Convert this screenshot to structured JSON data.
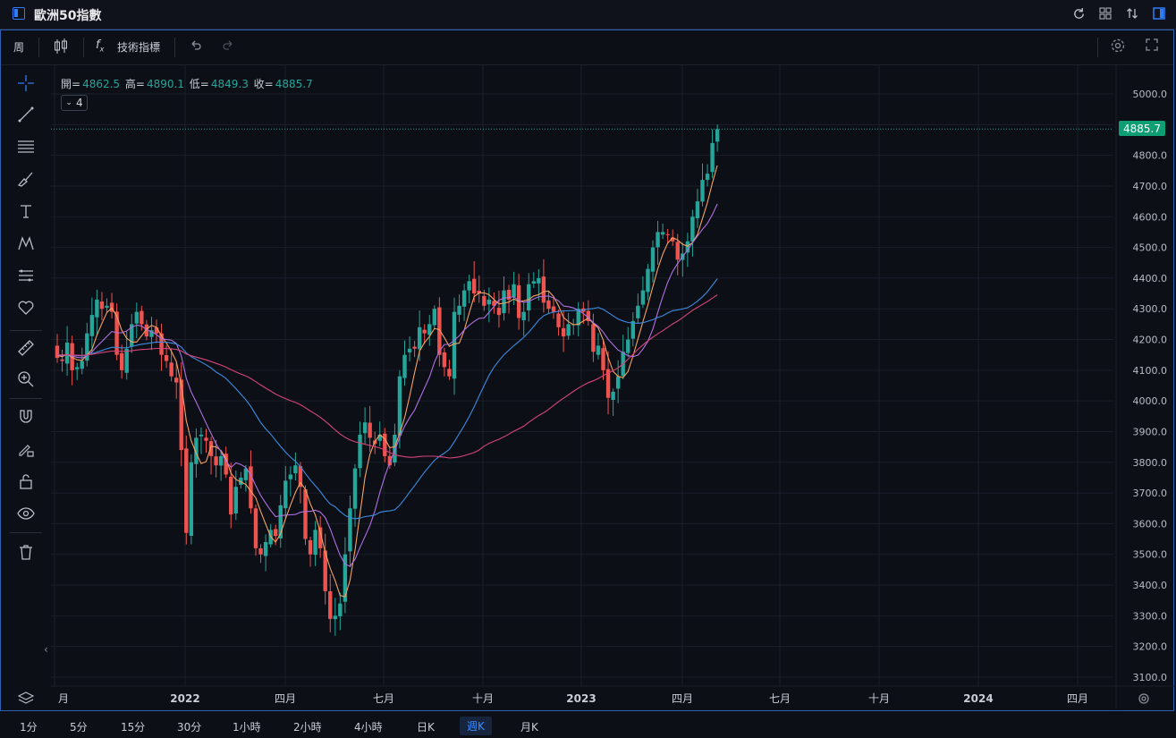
{
  "window": {
    "title": "歐洲50指數"
  },
  "toolbar": {
    "interval": "周",
    "indicators_label": "技術指標"
  },
  "ohlc": {
    "open_label": "開=",
    "open": "4862.5",
    "high_label": "高=",
    "high": "4890.1",
    "low_label": "低=",
    "low": "4849.3",
    "close_label": "收=",
    "close": "4885.7"
  },
  "legend": {
    "count": "4"
  },
  "current_price": "4885.7",
  "bottom": {
    "timeframes": [
      "1分",
      "5分",
      "15分",
      "30分",
      "1小時",
      "2小時",
      "4小時",
      "日K",
      "週K",
      "月K"
    ],
    "active": "週K"
  },
  "colors": {
    "up": "#26a69a",
    "down": "#ef5350",
    "accent": "#2f7cf6",
    "ma5": "#f4a261",
    "ma10": "#b071e0",
    "ma30": "#3d8be0",
    "ma60": "#d6457a"
  },
  "icons": [
    "crosshair-icon",
    "trendline-icon",
    "fib-icon",
    "brush-icon",
    "text-icon",
    "pattern-icon",
    "measure-icon",
    "heart-icon",
    "ruler-icon",
    "zoom-icon",
    "magnet-icon",
    "lock-draw-icon",
    "lock-icon",
    "eye-icon",
    "trash-icon"
  ],
  "chart_data": {
    "type": "candlestick",
    "y_ticks": [
      "5000.0",
      "4800.0",
      "4700.0",
      "4600.0",
      "4500.0",
      "4400.0",
      "4300.0",
      "4200.0",
      "4100.0",
      "4000.0",
      "3900.0",
      "3800.0",
      "3700.0",
      "3600.0",
      "3500.0",
      "3400.0",
      "3300.0",
      "3200.0",
      "3100.0"
    ],
    "x_ticks": [
      "​月",
      "2022",
      "四月",
      "七月",
      "十月",
      "2023",
      "四月",
      "七月",
      "十月",
      "2024",
      "四月"
    ],
    "ylim": [
      3080,
      5050
    ],
    "closes": [
      4140,
      4130,
      4190,
      4100,
      4110,
      4130,
      4220,
      4280,
      4330,
      4300,
      4310,
      4290,
      4150,
      4100,
      4170,
      4250,
      4290,
      4250,
      4210,
      4230,
      4220,
      4150,
      4130,
      4080,
      4060,
      3840,
      3570,
      3800,
      3880,
      3890,
      3870,
      3820,
      3790,
      3820,
      3760,
      3630,
      3720,
      3750,
      3780,
      3650,
      3520,
      3500,
      3540,
      3580,
      3560,
      3660,
      3740,
      3760,
      3790,
      3720,
      3550,
      3500,
      3580,
      3520,
      3380,
      3290,
      3300,
      3340,
      3500,
      3650,
      3780,
      3890,
      3930,
      3880,
      3860,
      3890,
      3820,
      3790,
      3890,
      4080,
      4150,
      4170,
      4170,
      4240,
      4220,
      4250,
      4300,
      4150,
      4110,
      4080,
      4290,
      4310,
      4360,
      4390,
      4350,
      4350,
      4310,
      4330,
      4310,
      4280,
      4360,
      4330,
      4380,
      4270,
      4290,
      4380,
      4390,
      4400,
      4320,
      4300,
      4290,
      4240,
      4210,
      4250,
      4250,
      4300,
      4290,
      4260,
      4160,
      4180,
      4100,
      4010,
      4030,
      4080,
      4160,
      4200,
      4260,
      4310,
      4360,
      4430,
      4500,
      4550,
      4550,
      4540,
      4520,
      4460,
      4480,
      4520,
      4600,
      4650,
      4720,
      4740,
      4840,
      4885
    ]
  }
}
